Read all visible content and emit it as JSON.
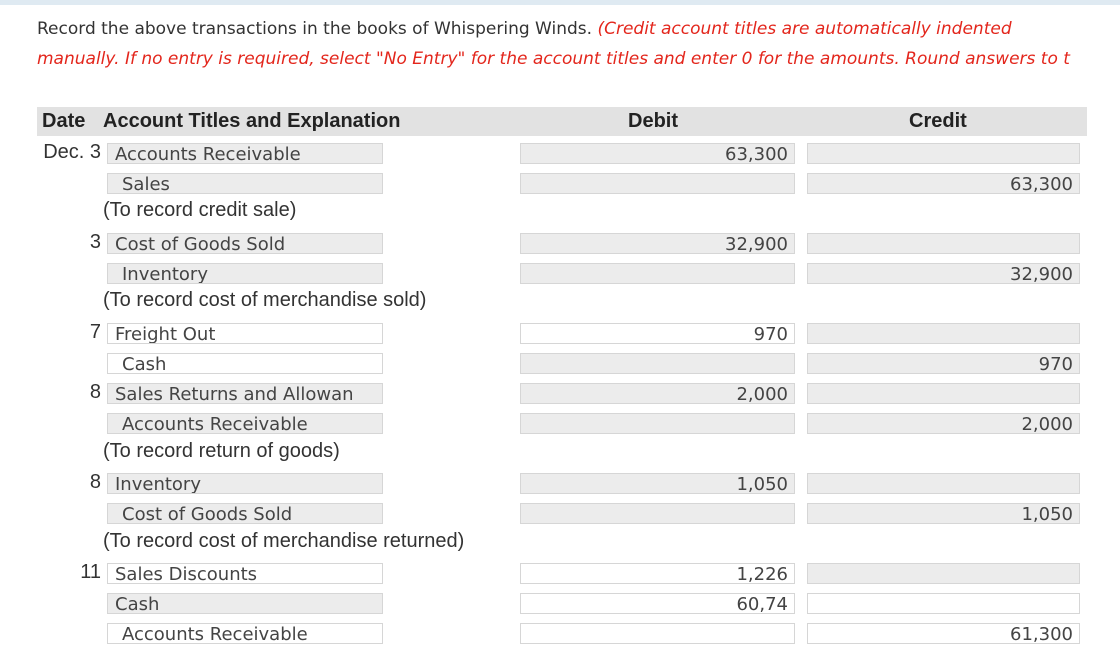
{
  "instructions": {
    "text": "Record the above transactions in the books of Whispering Winds.",
    "note_line1": "(Credit account titles are automatically indented",
    "note_line2": "manually. If no entry is required, select \"No Entry\" for the account titles and enter 0 for the amounts. Round answers to t"
  },
  "table": {
    "headers": [
      "Date",
      "Account Titles and Explanation",
      "Debit",
      "Credit"
    ],
    "rows": [
      {
        "date": "Dec. 3",
        "account": "Accounts Receivable",
        "debit": "63,300"
      },
      {
        "account": "Sales",
        "credit": "63,300"
      },
      {
        "explanation": "(To record credit sale)"
      },
      {
        "date": "3",
        "account": "Cost of Goods Sold",
        "debit": "32,900"
      },
      {
        "account": "Inventory",
        "credit": "32,900"
      },
      {
        "explanation": "(To record cost of merchandise sold)"
      },
      {
        "date": "7",
        "account": "Freight Out",
        "debit": "970"
      },
      {
        "account": "Cash",
        "credit": "970"
      },
      {
        "date": "8",
        "account": "Sales Returns and Allowan",
        "debit": "2,000"
      },
      {
        "account": "Accounts Receivable",
        "credit": "2,000"
      },
      {
        "explanation": "(To record return of goods)"
      },
      {
        "date": "8",
        "account": "Inventory",
        "debit": "1,050"
      },
      {
        "account": "Cost of Goods Sold",
        "credit": "1,050"
      },
      {
        "explanation": "(To record cost of merchandise returned)"
      },
      {
        "date": "11",
        "account": "Sales Discounts",
        "debit": "1,226"
      },
      {
        "account": "Cash",
        "debit": "60,74"
      },
      {
        "account": "Accounts Receivable",
        "credit": "61,300"
      }
    ]
  }
}
